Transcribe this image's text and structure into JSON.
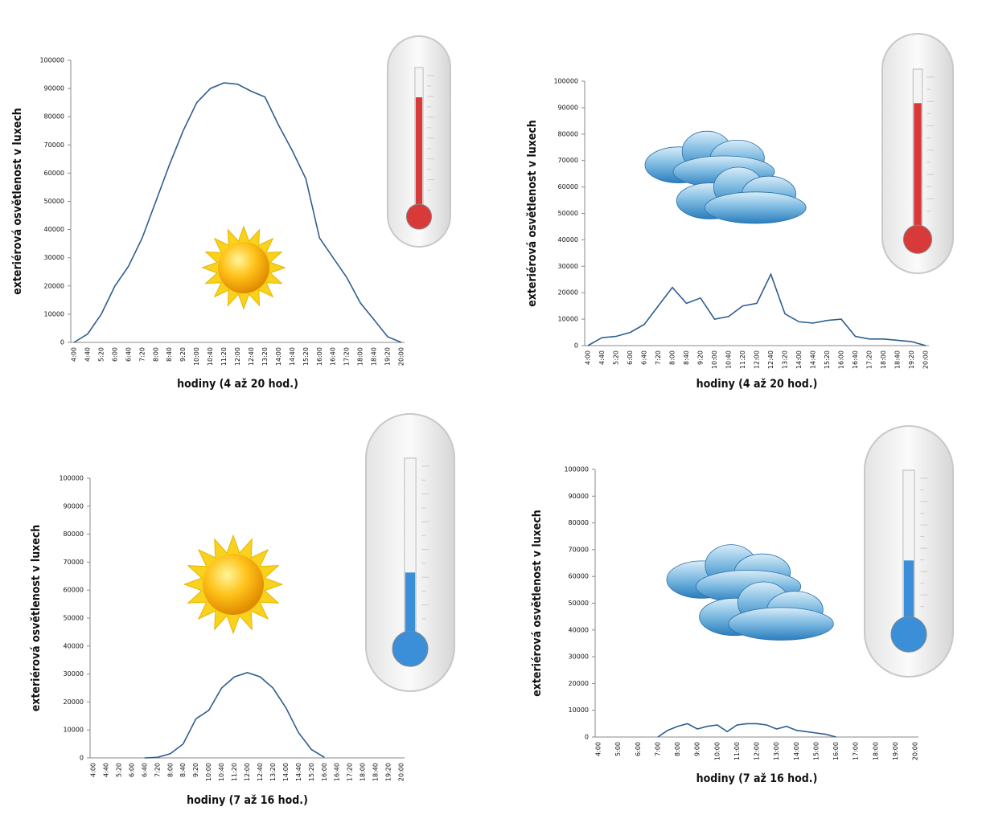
{
  "chart_data": [
    {
      "type": "line",
      "color": "#2f5d8f",
      "y_label": "exteriérová osvětlenost v luxech",
      "x_label": "hodiny (4 až 20 hod.)",
      "categories": [
        "4:00",
        "4:40",
        "5:20",
        "6:00",
        "6:40",
        "7:20",
        "8:00",
        "8:40",
        "9:20",
        "10:00",
        "10:40",
        "11:20",
        "12:00",
        "12:40",
        "13:20",
        "14:00",
        "14:40",
        "15:20",
        "16:00",
        "16:40",
        "17:20",
        "18:00",
        "18:40",
        "19:20",
        "20:00"
      ],
      "values": [
        0,
        3000,
        10000,
        20000,
        27000,
        37000,
        50000,
        63000,
        75000,
        85000,
        90000,
        92000,
        91500,
        89000,
        87000,
        77000,
        68000,
        58000,
        37000,
        30000,
        23000,
        14000,
        8000,
        2000,
        0
      ],
      "ylim": [
        0,
        100000
      ],
      "yticks": [
        0,
        10000,
        20000,
        30000,
        40000,
        50000,
        60000,
        70000,
        80000,
        90000,
        100000
      ]
    },
    {
      "type": "line",
      "color": "#2f5d8f",
      "y_label": "exteriérová osvětlenost v luxech",
      "x_label": "hodiny (4 až 20 hod.)",
      "categories": [
        "4:00",
        "4:40",
        "5:20",
        "6:00",
        "6:40",
        "7:20",
        "8:00",
        "8:40",
        "9:20",
        "10:00",
        "10:40",
        "11:20",
        "12:00",
        "12:40",
        "13:20",
        "14:00",
        "14:40",
        "15:20",
        "16:00",
        "16:40",
        "17:20",
        "18:00",
        "18:40",
        "19:20",
        "20:00"
      ],
      "values": [
        0,
        3000,
        3500,
        5000,
        8000,
        15000,
        22000,
        16000,
        18000,
        10000,
        11000,
        15000,
        16000,
        27000,
        12000,
        9000,
        8500,
        9500,
        10000,
        3500,
        2500,
        2500,
        2000,
        1500,
        0
      ],
      "ylim": [
        0,
        100000
      ],
      "yticks": [
        0,
        10000,
        20000,
        30000,
        40000,
        50000,
        60000,
        70000,
        80000,
        90000,
        100000
      ]
    },
    {
      "type": "line",
      "color": "#2f5d8f",
      "y_label": "exteriérová osvětlenost v luxech",
      "x_label": "hodiny (7 až 16 hod.)",
      "categories": [
        "4:00",
        "4:40",
        "5:20",
        "6:00",
        "6:40",
        "7:20",
        "8:00",
        "8:40",
        "9:20",
        "10:00",
        "10:40",
        "11:20",
        "12:00",
        "12:40",
        "13:20",
        "14:00",
        "14:40",
        "15:20",
        "16:00",
        "16:40",
        "17:20",
        "18:00",
        "18:40",
        "19:20",
        "20:00"
      ],
      "values": [
        null,
        null,
        null,
        null,
        0,
        200,
        1500,
        5000,
        14000,
        17000,
        25000,
        29000,
        30500,
        29000,
        25000,
        18000,
        9000,
        3000,
        200,
        null,
        null,
        null,
        null,
        null,
        null
      ],
      "ylim": [
        0,
        100000
      ],
      "yticks": [
        0,
        10000,
        20000,
        30000,
        40000,
        50000,
        60000,
        70000,
        80000,
        90000,
        100000
      ]
    },
    {
      "type": "line",
      "color": "#2f5d8f",
      "y_label": "exteriérová osvětlenost v luxech",
      "x_label": "hodiny (7 až 16 hod.)",
      "categories": [
        "4:00",
        null,
        "5:00",
        null,
        "6:00",
        null,
        "7:00",
        null,
        "8:00",
        null,
        "9:00",
        null,
        "10:00",
        null,
        "11:00",
        null,
        "12:00",
        null,
        "13:00",
        null,
        "14:00",
        null,
        "15:00",
        null,
        "16:00",
        null,
        "17:00",
        null,
        "18:00",
        null,
        "19:00",
        null,
        "20:00"
      ],
      "values": [
        null,
        null,
        null,
        null,
        null,
        null,
        0,
        2500,
        4000,
        5000,
        3000,
        4000,
        4500,
        2000,
        4500,
        5000,
        5000,
        4500,
        3000,
        4000,
        2500,
        2000,
        1500,
        1000,
        0,
        null,
        null,
        null,
        null,
        null,
        null,
        null,
        null
      ],
      "ylim": [
        0,
        100000
      ],
      "yticks": [
        0,
        10000,
        20000,
        30000,
        40000,
        50000,
        60000,
        70000,
        80000,
        90000,
        100000
      ]
    }
  ]
}
